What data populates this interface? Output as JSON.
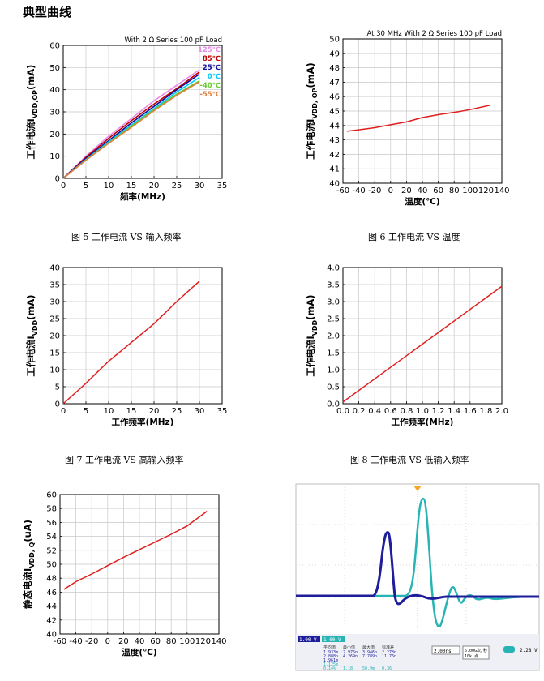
{
  "section_title": "典型曲线",
  "colors": {
    "red": "#e01e1e",
    "navy": "#1e1e9a",
    "teal": "#28b4b4",
    "grid": "#c8c8c8"
  },
  "chart_data": [
    {
      "id": "c1",
      "type": "line",
      "caption": "图 5  工作电流 VS 输入频率",
      "annotation": "With 2 Ω Series 100 pF Load",
      "xlabel": "频率(MHz)",
      "ylabel_main": "工作电流I",
      "ylabel_sub": "VDD,OP",
      "ylabel_unit": "(mA)",
      "xlim": [
        0,
        35
      ],
      "ylim": [
        0,
        60
      ],
      "xticks": [
        "0",
        "5",
        "10",
        "15",
        "20",
        "25",
        "30",
        "35"
      ],
      "yticks": [
        "0",
        "10",
        "20",
        "30",
        "40",
        "50",
        "60"
      ],
      "series": [
        {
          "name": "125℃",
          "color": "#e88ae8",
          "x": [
            0,
            5,
            10,
            15,
            20,
            25,
            30
          ],
          "y": [
            0,
            10,
            19,
            27,
            35,
            42,
            49
          ]
        },
        {
          "name": "85℃",
          "color": "#c00000",
          "x": [
            0,
            5,
            10,
            15,
            20,
            25,
            30
          ],
          "y": [
            0,
            9.5,
            18,
            26,
            33.5,
            40.5,
            48
          ]
        },
        {
          "name": "25℃",
          "color": "#1010a0",
          "x": [
            0,
            5,
            10,
            15,
            20,
            25,
            30
          ],
          "y": [
            0,
            9,
            17,
            25,
            32.5,
            40,
            47
          ]
        },
        {
          "name": "0℃",
          "color": "#00c8ff",
          "x": [
            0,
            5,
            10,
            15,
            20,
            25,
            30
          ],
          "y": [
            0,
            8.5,
            16.5,
            24,
            31.5,
            39,
            45.5
          ]
        },
        {
          "name": "-40℃",
          "color": "#66cc33",
          "x": [
            0,
            5,
            10,
            15,
            20,
            25,
            30
          ],
          "y": [
            0,
            8.3,
            16,
            23.5,
            31,
            38,
            44
          ]
        },
        {
          "name": "-55℃",
          "color": "#e08040",
          "x": [
            0,
            5,
            10,
            15,
            20,
            25,
            30
          ],
          "y": [
            0,
            8.2,
            15.8,
            23,
            30.5,
            37.5,
            43.5
          ]
        }
      ]
    },
    {
      "id": "c2",
      "type": "line",
      "caption": "图 6  工作电流 VS 温度",
      "annotation": "At 30 MHz With 2 Ω Series 100 pF Load",
      "xlabel": "温度(℃)",
      "ylabel_main": "工作电流I",
      "ylabel_sub": "VDD, OP",
      "ylabel_unit": "(mA)",
      "xlim": [
        -60,
        140
      ],
      "ylim": [
        40,
        50
      ],
      "xticks": [
        "-60",
        "-40",
        "-20",
        "0",
        "20",
        "40",
        "60",
        "80",
        "100",
        "120",
        "140"
      ],
      "yticks": [
        "40",
        "41",
        "42",
        "43",
        "44",
        "45",
        "46",
        "47",
        "48",
        "49",
        "50"
      ],
      "series": [
        {
          "color": "#e01e1e",
          "x": [
            -55,
            -40,
            -20,
            0,
            20,
            40,
            60,
            85,
            100,
            125
          ],
          "y": [
            43.6,
            43.7,
            43.85,
            44.05,
            44.25,
            44.55,
            44.75,
            44.95,
            45.1,
            45.4
          ]
        }
      ]
    },
    {
      "id": "c3",
      "type": "line",
      "caption": "图 7  工作电流 VS 高输入频率",
      "xlabel": "工作频率(MHz)",
      "ylabel_main": "工作电流I",
      "ylabel_sub": "VDD",
      "ylabel_unit": "(mA)",
      "xlim": [
        0,
        35
      ],
      "ylim": [
        0,
        40
      ],
      "xticks": [
        "0",
        "5",
        "10",
        "15",
        "20",
        "25",
        "30",
        "35"
      ],
      "yticks": [
        "0",
        "5",
        "10",
        "15",
        "20",
        "25",
        "30",
        "35",
        "40"
      ],
      "series": [
        {
          "color": "#e01e1e",
          "x": [
            0,
            5,
            10,
            15,
            20,
            25,
            30
          ],
          "y": [
            0,
            6,
            12.5,
            18,
            23.5,
            30,
            36
          ]
        }
      ]
    },
    {
      "id": "c4",
      "type": "line",
      "caption": "图 8  工作电流 VS 低输入频率",
      "xlabel": "工作频率(MHz)",
      "ylabel_main": "工作电流I",
      "ylabel_sub": "VDD",
      "ylabel_unit": "(mA)",
      "xlim": [
        0,
        2
      ],
      "ylim": [
        0,
        4
      ],
      "xticks": [
        "0.0",
        "0.2",
        "0.4",
        "0.6",
        "0.8",
        "1.0",
        "1.2",
        "1.4",
        "1.6",
        "1.8",
        "2.0"
      ],
      "yticks": [
        "0.0",
        "0.5",
        "1.0",
        "1.5",
        "2.0",
        "2.5",
        "3.0",
        "3.5",
        "4.0"
      ],
      "series": [
        {
          "color": "#e01e1e",
          "x": [
            0,
            0.5,
            1,
            1.5,
            2
          ],
          "y": [
            0.05,
            0.9,
            1.75,
            2.6,
            3.45
          ]
        }
      ]
    },
    {
      "id": "c5",
      "type": "line",
      "xlabel": "温度(℃)",
      "ylabel_main": "静态电流I",
      "ylabel_sub": "VDD, Q",
      "ylabel_unit": "(uA)",
      "xlim": [
        -60,
        140
      ],
      "ylim": [
        40,
        60
      ],
      "xticks": [
        "-60",
        "-40",
        "-20",
        "0",
        "20",
        "40",
        "60",
        "80",
        "100",
        "120",
        "140"
      ],
      "yticks": [
        "40",
        "42",
        "44",
        "46",
        "48",
        "50",
        "52",
        "54",
        "56",
        "58",
        "60"
      ],
      "series": [
        {
          "color": "#e01e1e",
          "x": [
            -55,
            -40,
            -20,
            0,
            20,
            40,
            60,
            80,
            100,
            125
          ],
          "y": [
            46.4,
            47.5,
            48.6,
            49.8,
            51,
            52.1,
            53.2,
            54.3,
            55.5,
            57.6
          ]
        }
      ]
    }
  ],
  "scope": {
    "ch1_scale": "1.00 V",
    "ch2_scale": "1.00 V",
    "headers": [
      "平均值",
      "最小值",
      "最大值",
      "标准差"
    ],
    "rows": [
      [
        "1.933m",
        "2.976n",
        "3.946n",
        "2.278n"
      ],
      [
        "2.888n",
        "4.269n",
        "7.789n",
        "11.76n"
      ],
      [
        "1.961m",
        "",
        "",
        ""
      ],
      [
        "1.125m",
        "",
        "",
        ""
      ],
      [
        "0.14%",
        "1.18",
        "50.9m",
        "0.36"
      ]
    ],
    "timebase": "2.00ns",
    "sample": "5.00G次/秒",
    "record": "10k 点",
    "trigger": "2.28 V"
  }
}
